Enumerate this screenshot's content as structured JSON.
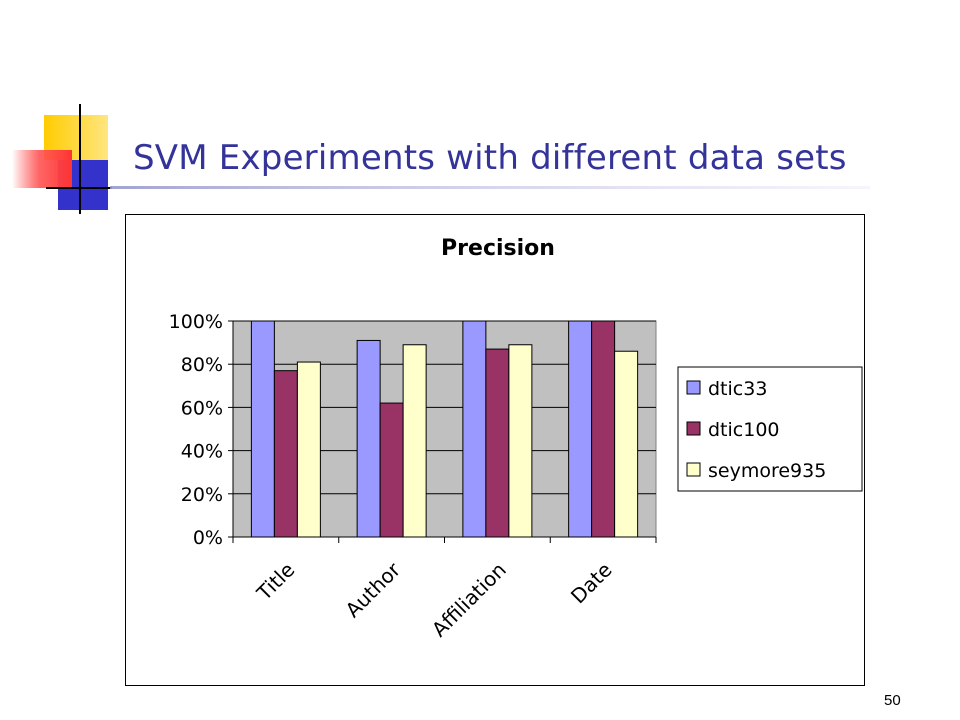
{
  "slide": {
    "title": "SVM Experiments with different data sets",
    "page_number": "50"
  },
  "chart_data": {
    "type": "bar",
    "title": "Precision",
    "xlabel": "",
    "ylabel": "",
    "categories": [
      "Title",
      "Author",
      "Affiliation",
      "Date"
    ],
    "series": [
      {
        "name": "dtic33",
        "color": "#9999ff",
        "values": [
          100,
          91,
          100,
          100
        ]
      },
      {
        "name": "dtic100",
        "color": "#993366",
        "values": [
          77,
          62,
          87,
          100
        ]
      },
      {
        "name": "seymore935",
        "color": "#ffffcc",
        "values": [
          81,
          89,
          89,
          86
        ]
      }
    ],
    "yticks": [
      "0%",
      "20%",
      "40%",
      "60%",
      "80%",
      "100%"
    ],
    "ylim": [
      0,
      100
    ],
    "plot_background": "#c0c0c0",
    "grid": true,
    "legend_position": "right"
  }
}
